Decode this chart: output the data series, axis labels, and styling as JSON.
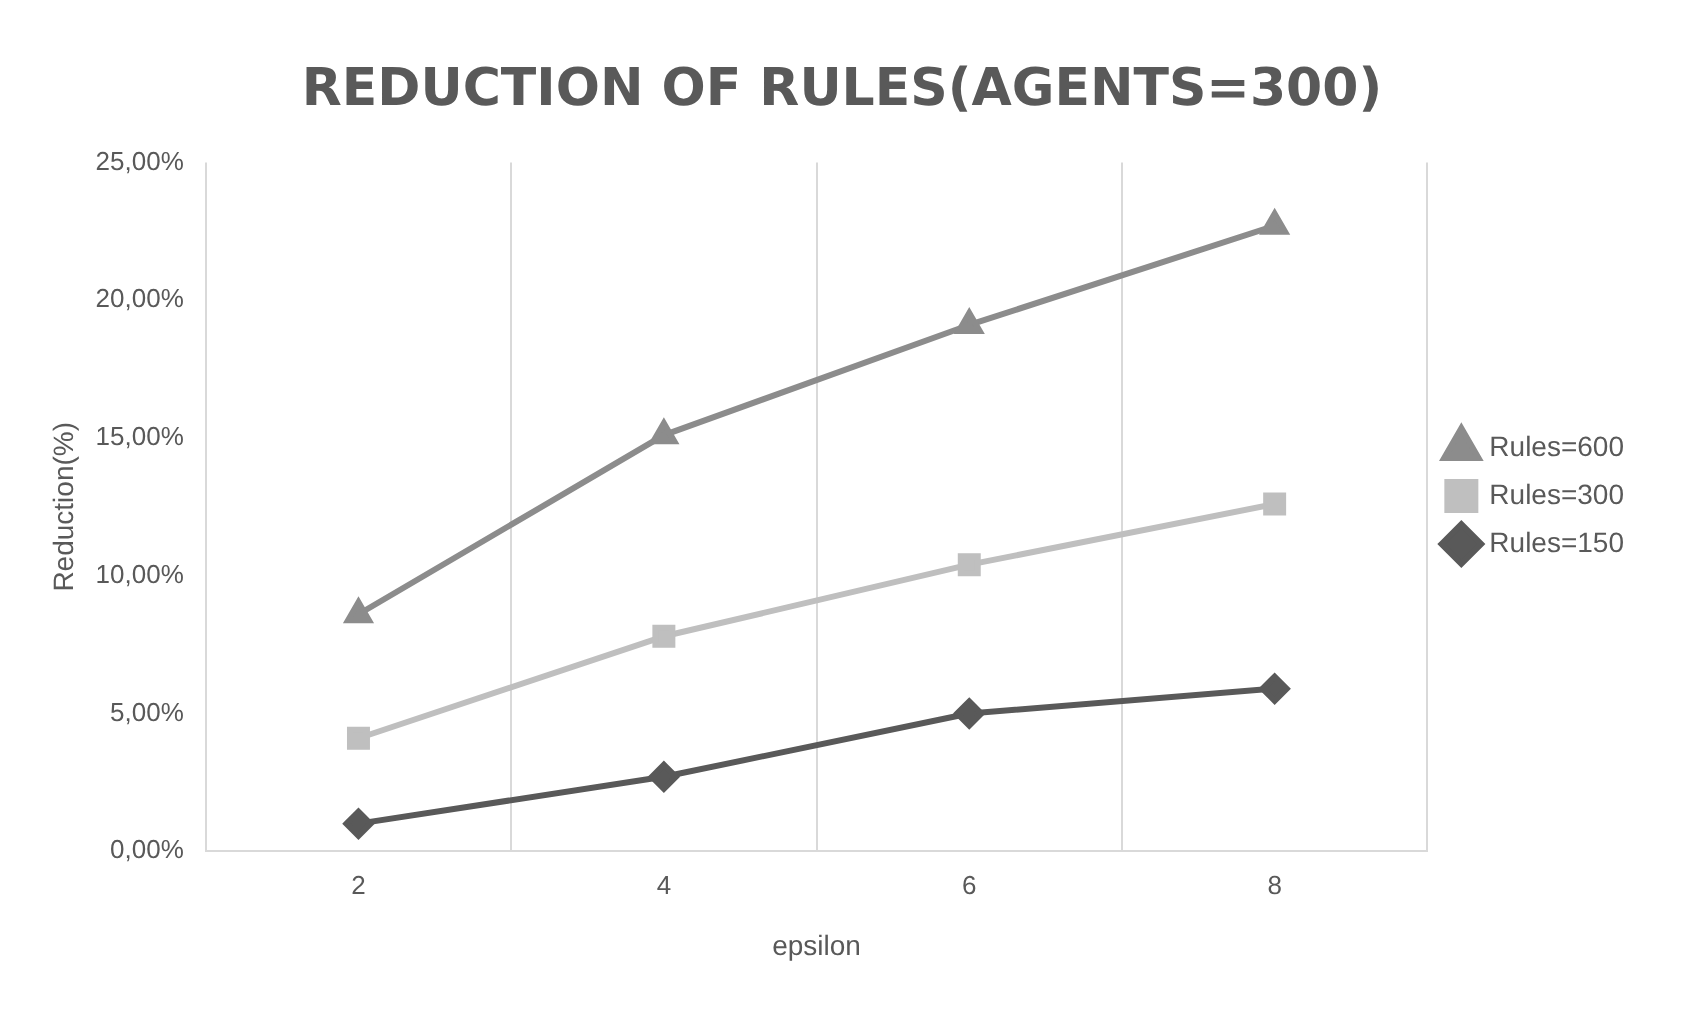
{
  "chart_data": {
    "type": "line",
    "title": "REDUCTION OF RULES(AGENTS=300)",
    "xlabel": "epsilon",
    "ylabel": "Reduction(%)",
    "categories": [
      "2",
      "4",
      "6",
      "8"
    ],
    "series": [
      {
        "name": "Rules=600",
        "color": "#8c8c8c",
        "marker": "triangle",
        "values": [
          8.6,
          15.1,
          19.1,
          22.7
        ]
      },
      {
        "name": "Rules=300",
        "color": "#bfbfbf",
        "marker": "square",
        "values": [
          4.1,
          7.8,
          10.4,
          12.6
        ]
      },
      {
        "name": "Rules=150",
        "color": "#595959",
        "marker": "diamond",
        "values": [
          1.0,
          2.7,
          5.0,
          5.9
        ]
      }
    ],
    "ylim": [
      0,
      25
    ],
    "yticks": [
      {
        "value": 0,
        "label": "0,00%"
      },
      {
        "value": 5,
        "label": "5,00%"
      },
      {
        "value": 10,
        "label": "10,00%"
      },
      {
        "value": 15,
        "label": "15,00%"
      },
      {
        "value": 20,
        "label": "20,00%"
      },
      {
        "value": 25,
        "label": "25,00%"
      }
    ],
    "grid": "x",
    "legend": "right",
    "line_style": "solid"
  }
}
